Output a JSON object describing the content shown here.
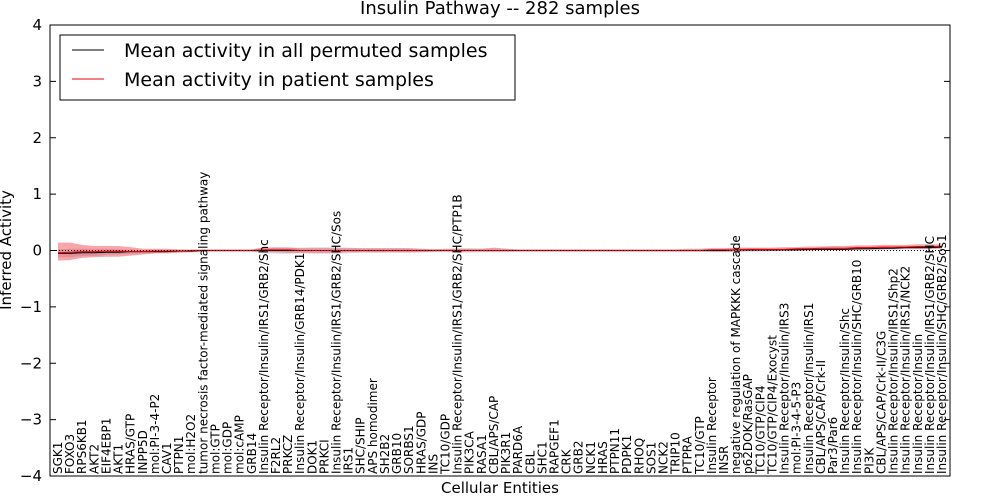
{
  "chart_data": {
    "type": "line",
    "title": "Insulin Pathway -- 282 samples",
    "xlabel": "Cellular Entities",
    "ylabel": "Inferred Activity",
    "ylim": [
      -4,
      4
    ],
    "yticks": [
      -4,
      -3,
      -2,
      -1,
      0,
      1,
      2,
      3,
      4
    ],
    "legend_position": "top-left",
    "categories": [
      "SGK1",
      "FOXO3",
      "RPS6KB1",
      "AKT2",
      "EIF4EBP1",
      "AKT1",
      "HRAS/GTP",
      "INPP5D",
      "mol:PI-3-4-P2",
      "CAV1",
      "PTPN1",
      "mol:H2O2",
      "tumor necrosis factor-mediated signaling pathway",
      "mol:GTP",
      "mol:GDP",
      "mol:cAMP",
      "GRB14",
      "Insulin Receptor/Insulin/IRS1/GRB2/Shc",
      "F2RL2",
      "PRKCZ",
      "Insulin Receptor/Insulin/GRB14/PDK1",
      "DOK1",
      "PRKCI",
      "Insulin Receptor/Insulin/IRS1/GRB2/SHC/Sos",
      "IRS1",
      "SHC/SHIP",
      "APS homodimer",
      "SH2B2",
      "GRB10",
      "SORBS1",
      "HRAS/GDP",
      "INS",
      "TC10/GDP",
      "Insulin Receptor/Insulin/IRS1/GRB2/SHC/PTP1B",
      "PIK3CA",
      "RASA1",
      "CBL/APS/CAP",
      "PIK3R1",
      "PARD6A",
      "CBL",
      "SHC1",
      "RAPGEF1",
      "CRK",
      "GRB2",
      "NCK1",
      "HRAS",
      "PTPN11",
      "PDPK1",
      "RHOQ",
      "SOS1",
      "NCK2",
      "TRIP10",
      "PTPRA",
      "TC10/GTP",
      "Insulin Receptor",
      "INSR",
      "negative regulation of MAPKKK cascade",
      "p62DOK/RasGAP",
      "TC10/GTP/CIP4",
      "TC10/GTP/CIP4/Exocyst",
      "Insulin Receptor/Insulin/IRS3",
      "mol:PI-3-4-5-P3",
      "Insulin Receptor/Insulin/IRS1",
      "CBL/APS/CAP/Crk-II",
      "Par3/Par6",
      "Insulin Receptor/Insulin/Shc",
      "Insulin Receptor/Insulin/SHC/GRB10",
      "PI3K",
      "CBL/APS/CAP/Crk-II/C3G",
      "Insulin Receptor/Insulin/IRS1/Shp2",
      "Insulin Receptor/Insulin/IRS1/NCK2",
      "Insulin Receptor/Insulin",
      "Insulin Receptor/Insulin/IRS1/GRB2/SHC",
      "Insulin Receptor/Insulin/SHC/GRB2/Sos1"
    ],
    "series": [
      {
        "name": "Mean activity in all permuted samples",
        "color": "#000000",
        "values": [
          -0.05,
          -0.05,
          -0.04,
          -0.04,
          -0.03,
          -0.03,
          -0.02,
          -0.02,
          -0.02,
          -0.02,
          -0.01,
          -0.01,
          0.0,
          0.0,
          0.0,
          0.0,
          0.0,
          0.0,
          0.0,
          0.0,
          0.0,
          0.0,
          0.0,
          0.0,
          0.0,
          0.0,
          0.0,
          0.0,
          0.0,
          0.0,
          0.0,
          0.0,
          0.0,
          0.0,
          0.0,
          0.0,
          0.0,
          0.0,
          0.0,
          0.0,
          0.0,
          0.0,
          0.0,
          0.0,
          0.0,
          0.0,
          0.0,
          0.0,
          0.0,
          0.0,
          0.0,
          0.0,
          0.0,
          0.0,
          0.0,
          0.0,
          0.01,
          0.01,
          0.01,
          0.01,
          0.01,
          0.01,
          0.02,
          0.02,
          0.02,
          0.02,
          0.03,
          0.03,
          0.04,
          0.04,
          0.05,
          0.05,
          0.05,
          0.06
        ],
        "band_low": [
          -0.12,
          -0.12,
          -0.1,
          -0.1,
          -0.08,
          -0.07,
          -0.06,
          -0.05,
          -0.05,
          -0.04,
          -0.03,
          -0.02,
          -0.02,
          -0.02,
          -0.02,
          -0.02,
          -0.02,
          -0.05,
          -0.06,
          -0.06,
          -0.05,
          -0.06,
          -0.06,
          -0.06,
          -0.05,
          -0.04,
          -0.04,
          -0.04,
          -0.04,
          -0.04,
          -0.03,
          -0.03,
          -0.02,
          -0.04,
          -0.04,
          -0.03,
          -0.03,
          -0.03,
          -0.02,
          -0.02,
          -0.02,
          -0.02,
          -0.02,
          -0.02,
          -0.02,
          -0.02,
          -0.02,
          -0.02,
          -0.02,
          -0.02,
          -0.02,
          -0.02,
          -0.02,
          -0.02,
          -0.03,
          -0.03,
          -0.02,
          -0.02,
          -0.02,
          -0.01,
          -0.01,
          -0.01,
          0.0,
          0.0,
          0.0,
          0.0,
          0.0,
          0.0,
          0.01,
          0.01,
          0.02,
          0.02,
          0.02,
          0.03
        ],
        "band_high": [
          0.02,
          0.03,
          0.03,
          0.03,
          0.03,
          0.02,
          0.02,
          0.01,
          0.01,
          0.01,
          0.01,
          0.01,
          0.02,
          0.02,
          0.02,
          0.02,
          0.02,
          0.05,
          0.06,
          0.06,
          0.05,
          0.06,
          0.06,
          0.06,
          0.05,
          0.04,
          0.04,
          0.04,
          0.04,
          0.04,
          0.03,
          0.03,
          0.02,
          0.04,
          0.04,
          0.03,
          0.03,
          0.03,
          0.02,
          0.02,
          0.02,
          0.02,
          0.02,
          0.02,
          0.02,
          0.02,
          0.02,
          0.02,
          0.02,
          0.02,
          0.02,
          0.02,
          0.02,
          0.02,
          0.03,
          0.03,
          0.04,
          0.04,
          0.04,
          0.03,
          0.03,
          0.03,
          0.04,
          0.04,
          0.04,
          0.04,
          0.06,
          0.06,
          0.07,
          0.07,
          0.08,
          0.08,
          0.08,
          0.09
        ],
        "band_color": "#b8b8c8"
      },
      {
        "name": "Mean activity in patient samples",
        "color": "#e8000b",
        "values": [
          -0.04,
          -0.03,
          -0.02,
          -0.02,
          -0.01,
          -0.01,
          -0.02,
          -0.02,
          -0.01,
          -0.01,
          -0.01,
          0.0,
          0.0,
          0.0,
          0.0,
          0.0,
          0.0,
          0.01,
          0.01,
          0.01,
          0.0,
          0.0,
          0.0,
          0.0,
          0.0,
          0.0,
          0.0,
          0.0,
          0.0,
          0.0,
          0.0,
          0.0,
          0.0,
          0.0,
          0.0,
          0.0,
          0.0,
          0.0,
          0.0,
          0.0,
          0.0,
          0.0,
          0.0,
          0.0,
          0.0,
          0.0,
          0.0,
          0.0,
          0.0,
          0.0,
          0.0,
          0.0,
          0.0,
          0.0,
          0.01,
          0.01,
          0.01,
          0.02,
          0.02,
          0.02,
          0.02,
          0.03,
          0.03,
          0.04,
          0.04,
          0.04,
          0.05,
          0.05,
          0.06,
          0.06,
          0.06,
          0.07,
          0.07,
          0.07
        ],
        "band_low": [
          -0.18,
          -0.17,
          -0.13,
          -0.12,
          -0.11,
          -0.11,
          -0.09,
          -0.07,
          -0.05,
          -0.05,
          -0.04,
          -0.03,
          -0.02,
          -0.02,
          -0.02,
          -0.02,
          -0.02,
          -0.03,
          -0.03,
          -0.04,
          -0.04,
          -0.04,
          -0.04,
          -0.04,
          -0.03,
          -0.03,
          -0.03,
          -0.03,
          -0.03,
          -0.03,
          -0.03,
          -0.02,
          -0.02,
          -0.02,
          -0.02,
          -0.02,
          -0.02,
          -0.02,
          -0.02,
          -0.02,
          -0.02,
          -0.02,
          -0.02,
          -0.02,
          -0.02,
          -0.02,
          -0.02,
          -0.02,
          -0.02,
          -0.02,
          -0.02,
          -0.02,
          -0.02,
          -0.02,
          -0.02,
          -0.02,
          -0.02,
          -0.01,
          -0.01,
          -0.01,
          0.0,
          0.0,
          0.0,
          0.01,
          0.01,
          0.01,
          0.01,
          0.02,
          0.02,
          0.03,
          0.03,
          0.03,
          0.03,
          0.04
        ],
        "band_high": [
          0.14,
          0.14,
          0.1,
          0.08,
          0.08,
          0.08,
          0.06,
          0.03,
          0.03,
          0.03,
          0.02,
          0.02,
          0.02,
          0.02,
          0.02,
          0.02,
          0.02,
          0.05,
          0.05,
          0.05,
          0.04,
          0.04,
          0.04,
          0.04,
          0.04,
          0.04,
          0.04,
          0.04,
          0.04,
          0.04,
          0.03,
          0.02,
          0.03,
          0.03,
          0.03,
          0.03,
          0.05,
          0.03,
          0.02,
          0.02,
          0.02,
          0.02,
          0.02,
          0.02,
          0.02,
          0.02,
          0.02,
          0.02,
          0.02,
          0.02,
          0.02,
          0.02,
          0.03,
          0.03,
          0.04,
          0.04,
          0.05,
          0.05,
          0.05,
          0.05,
          0.06,
          0.06,
          0.07,
          0.07,
          0.08,
          0.08,
          0.09,
          0.09,
          0.1,
          0.1,
          0.1,
          0.11,
          0.11,
          0.11
        ],
        "band_color": "#e8000b"
      }
    ]
  }
}
